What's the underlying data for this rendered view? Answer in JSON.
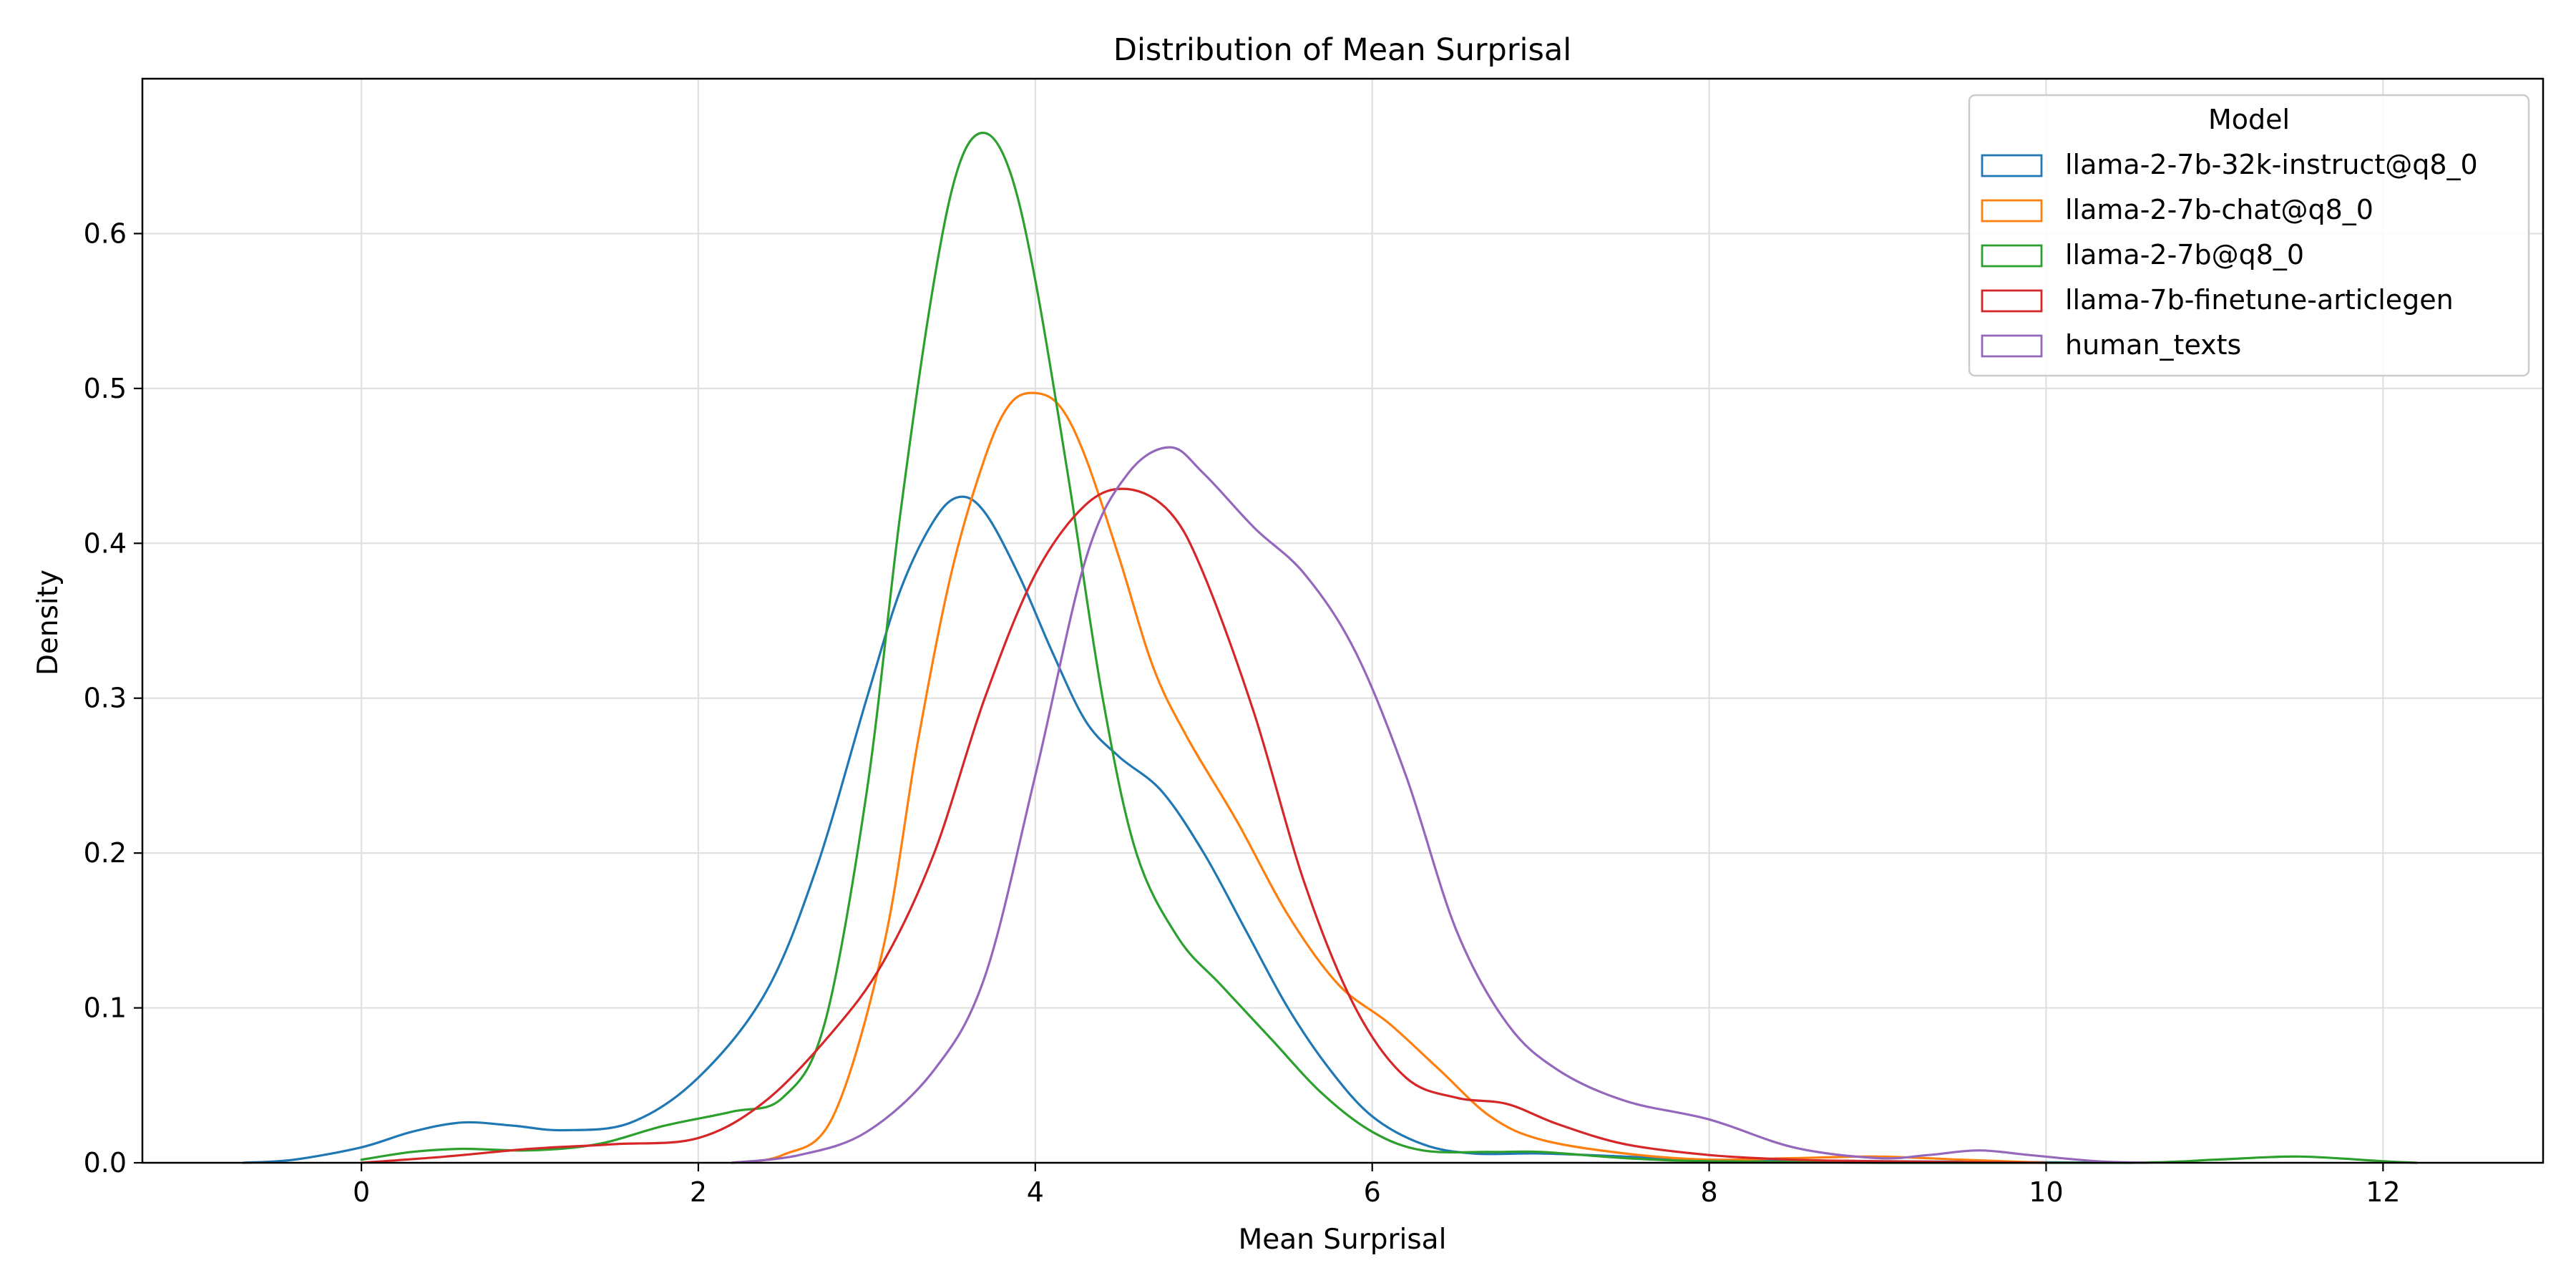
{
  "chart_data": {
    "type": "line",
    "title": "Distribution of Mean Surprisal",
    "xlabel": "Mean Surprisal",
    "ylabel": "Density",
    "xlim": [
      -1.3,
      12.95
    ],
    "ylim": [
      0.0,
      0.7
    ],
    "xticks": [
      0,
      2,
      4,
      6,
      8,
      10,
      12
    ],
    "yticks": [
      0.0,
      0.1,
      0.2,
      0.3,
      0.4,
      0.5,
      0.6
    ],
    "grid": true,
    "legend": {
      "title": "Model",
      "placement": "top-right"
    },
    "series": [
      {
        "name": "llama-2-7b-32k-instruct@q8_0",
        "color": "#1f77b4",
        "points": [
          [
            -0.7,
            0.0
          ],
          [
            -0.4,
            0.002
          ],
          [
            0.0,
            0.01
          ],
          [
            0.3,
            0.02
          ],
          [
            0.6,
            0.026
          ],
          [
            0.9,
            0.024
          ],
          [
            1.2,
            0.021
          ],
          [
            1.6,
            0.026
          ],
          [
            2.0,
            0.055
          ],
          [
            2.4,
            0.11
          ],
          [
            2.7,
            0.19
          ],
          [
            3.0,
            0.3
          ],
          [
            3.2,
            0.37
          ],
          [
            3.4,
            0.415
          ],
          [
            3.55,
            0.43
          ],
          [
            3.7,
            0.42
          ],
          [
            3.9,
            0.38
          ],
          [
            4.1,
            0.33
          ],
          [
            4.3,
            0.285
          ],
          [
            4.5,
            0.262
          ],
          [
            4.75,
            0.24
          ],
          [
            5.0,
            0.2
          ],
          [
            5.25,
            0.15
          ],
          [
            5.5,
            0.1
          ],
          [
            5.75,
            0.06
          ],
          [
            6.0,
            0.03
          ],
          [
            6.3,
            0.012
          ],
          [
            6.6,
            0.006
          ],
          [
            7.0,
            0.006
          ],
          [
            7.5,
            0.004
          ],
          [
            8.0,
            0.002
          ],
          [
            9.0,
            0.001
          ],
          [
            10.5,
            0.0
          ]
        ]
      },
      {
        "name": "llama-2-7b-chat@q8_0",
        "color": "#ff7f0e",
        "points": [
          [
            2.2,
            0.0
          ],
          [
            2.5,
            0.005
          ],
          [
            2.8,
            0.03
          ],
          [
            3.1,
            0.14
          ],
          [
            3.3,
            0.27
          ],
          [
            3.5,
            0.38
          ],
          [
            3.7,
            0.455
          ],
          [
            3.85,
            0.49
          ],
          [
            4.0,
            0.497
          ],
          [
            4.15,
            0.488
          ],
          [
            4.3,
            0.455
          ],
          [
            4.5,
            0.39
          ],
          [
            4.7,
            0.32
          ],
          [
            4.9,
            0.275
          ],
          [
            5.2,
            0.22
          ],
          [
            5.5,
            0.16
          ],
          [
            5.8,
            0.115
          ],
          [
            6.1,
            0.09
          ],
          [
            6.4,
            0.06
          ],
          [
            6.7,
            0.03
          ],
          [
            7.0,
            0.015
          ],
          [
            7.5,
            0.006
          ],
          [
            8.0,
            0.002
          ],
          [
            8.5,
            0.003
          ],
          [
            9.0,
            0.004
          ],
          [
            9.5,
            0.002
          ],
          [
            10.0,
            0.0
          ]
        ]
      },
      {
        "name": "llama-2-7b@q8_0",
        "color": "#2ca02c",
        "points": [
          [
            0.0,
            0.002
          ],
          [
            0.3,
            0.007
          ],
          [
            0.6,
            0.009
          ],
          [
            1.0,
            0.008
          ],
          [
            1.4,
            0.012
          ],
          [
            1.8,
            0.024
          ],
          [
            2.2,
            0.033
          ],
          [
            2.5,
            0.042
          ],
          [
            2.75,
            0.09
          ],
          [
            3.0,
            0.24
          ],
          [
            3.2,
            0.42
          ],
          [
            3.4,
            0.57
          ],
          [
            3.55,
            0.645
          ],
          [
            3.7,
            0.665
          ],
          [
            3.85,
            0.64
          ],
          [
            4.0,
            0.57
          ],
          [
            4.2,
            0.44
          ],
          [
            4.4,
            0.3
          ],
          [
            4.6,
            0.2
          ],
          [
            4.85,
            0.145
          ],
          [
            5.1,
            0.115
          ],
          [
            5.4,
            0.08
          ],
          [
            5.7,
            0.045
          ],
          [
            6.0,
            0.02
          ],
          [
            6.3,
            0.008
          ],
          [
            6.7,
            0.007
          ],
          [
            7.0,
            0.007
          ],
          [
            7.5,
            0.003
          ],
          [
            8.0,
            0.001
          ],
          [
            9.0,
            0.0
          ],
          [
            10.5,
            0.0
          ],
          [
            11.0,
            0.002
          ],
          [
            11.5,
            0.004
          ],
          [
            12.0,
            0.001
          ],
          [
            12.2,
            0.0
          ]
        ]
      },
      {
        "name": "llama-7b-finetune-articlegen",
        "color": "#d62728",
        "points": [
          [
            0.0,
            0.0
          ],
          [
            0.5,
            0.004
          ],
          [
            1.0,
            0.009
          ],
          [
            1.5,
            0.012
          ],
          [
            2.0,
            0.016
          ],
          [
            2.4,
            0.04
          ],
          [
            2.8,
            0.085
          ],
          [
            3.1,
            0.13
          ],
          [
            3.4,
            0.2
          ],
          [
            3.7,
            0.3
          ],
          [
            4.0,
            0.38
          ],
          [
            4.3,
            0.425
          ],
          [
            4.55,
            0.435
          ],
          [
            4.8,
            0.42
          ],
          [
            5.0,
            0.38
          ],
          [
            5.3,
            0.29
          ],
          [
            5.6,
            0.18
          ],
          [
            5.9,
            0.1
          ],
          [
            6.2,
            0.055
          ],
          [
            6.5,
            0.042
          ],
          [
            6.8,
            0.038
          ],
          [
            7.1,
            0.025
          ],
          [
            7.5,
            0.012
          ],
          [
            8.0,
            0.005
          ],
          [
            8.5,
            0.002
          ],
          [
            9.0,
            0.001
          ],
          [
            10.0,
            0.0
          ]
        ]
      },
      {
        "name": "human_texts",
        "color": "#9467bd",
        "points": [
          [
            2.2,
            0.0
          ],
          [
            2.6,
            0.005
          ],
          [
            3.0,
            0.02
          ],
          [
            3.4,
            0.06
          ],
          [
            3.7,
            0.12
          ],
          [
            4.0,
            0.25
          ],
          [
            4.3,
            0.39
          ],
          [
            4.55,
            0.445
          ],
          [
            4.8,
            0.462
          ],
          [
            5.0,
            0.445
          ],
          [
            5.3,
            0.41
          ],
          [
            5.6,
            0.38
          ],
          [
            5.9,
            0.33
          ],
          [
            6.2,
            0.25
          ],
          [
            6.5,
            0.15
          ],
          [
            6.8,
            0.09
          ],
          [
            7.1,
            0.06
          ],
          [
            7.5,
            0.04
          ],
          [
            8.0,
            0.028
          ],
          [
            8.5,
            0.01
          ],
          [
            9.0,
            0.003
          ],
          [
            9.3,
            0.005
          ],
          [
            9.6,
            0.008
          ],
          [
            9.9,
            0.005
          ],
          [
            10.3,
            0.001
          ],
          [
            10.6,
            0.0
          ]
        ]
      }
    ]
  }
}
